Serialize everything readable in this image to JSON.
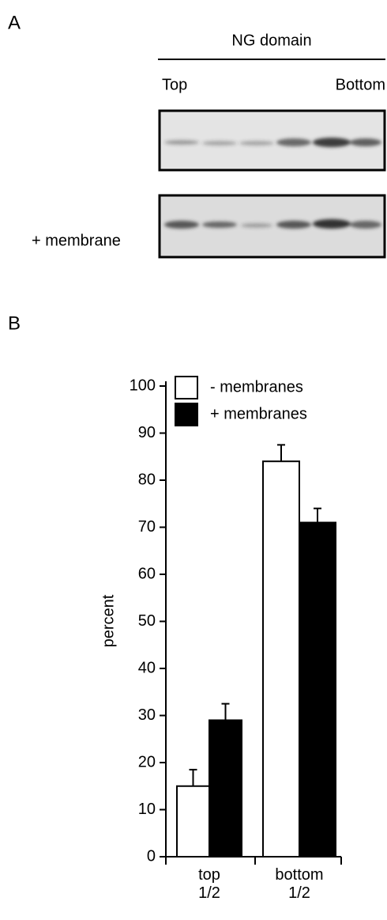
{
  "panel_a": {
    "label": "A",
    "header": "NG domain",
    "left_label": "Top",
    "right_label": "Bottom",
    "row_label": "+ membrane"
  },
  "chart_data": {
    "type": "bar",
    "panel_label": "B",
    "y_label": "percent",
    "categories": [
      "top 1/2",
      "bottom 1/2"
    ],
    "series": [
      {
        "name": "- membranes",
        "color": "#ffffff",
        "values": [
          15,
          84
        ],
        "errors": [
          3.5,
          3.5
        ]
      },
      {
        "name": "+ membranes",
        "color": "#000000",
        "values": [
          29,
          71
        ],
        "errors": [
          3.5,
          3
        ]
      }
    ],
    "ylim": [
      0,
      100
    ],
    "yticks": [
      0,
      10,
      20,
      30,
      40,
      50,
      60,
      70,
      80,
      90,
      100
    ],
    "legend": "upper left"
  }
}
